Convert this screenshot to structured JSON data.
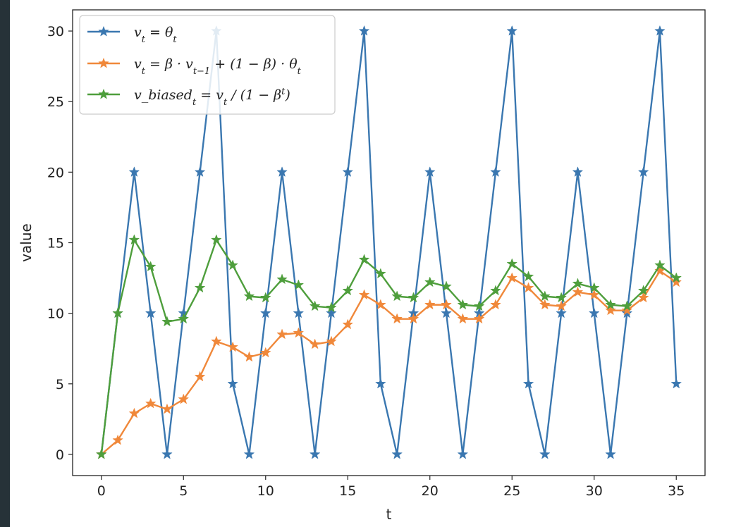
{
  "chart_data": {
    "type": "line",
    "xlabel": "t",
    "ylabel": "value",
    "xlim": [
      -1.75,
      36.75
    ],
    "ylim": [
      -1.5,
      31.5
    ],
    "xticks": [
      0,
      5,
      10,
      15,
      20,
      25,
      30,
      35
    ],
    "yticks": [
      0,
      5,
      10,
      15,
      20,
      25,
      30
    ],
    "marker": "star",
    "legend_position": "top-left",
    "grid": false,
    "x": [
      0,
      1,
      2,
      3,
      4,
      5,
      6,
      7,
      8,
      9,
      10,
      11,
      12,
      13,
      14,
      15,
      16,
      17,
      18,
      19,
      20,
      21,
      22,
      23,
      24,
      25,
      26,
      27,
      28,
      29,
      30,
      31,
      32,
      33,
      34,
      35
    ],
    "series": [
      {
        "name": "v_t = θ_t",
        "legend": [
          "v",
          "t",
          " = θ",
          "t",
          ""
        ],
        "color": "#3a77b0",
        "values": [
          0,
          10,
          20,
          10,
          0,
          10,
          20,
          30,
          5,
          0,
          10,
          20,
          10,
          0,
          10,
          20,
          30,
          5,
          0,
          10,
          20,
          10,
          0,
          10,
          20,
          30,
          5,
          0,
          10,
          20,
          10,
          0,
          10,
          20,
          30,
          5
        ]
      },
      {
        "name": "v_t = β · v_{t−1} + (1 − β) · θ_t",
        "legend": [
          "v",
          "t",
          " = β · v",
          "t−1",
          " + (1 − β) · θ",
          "t",
          ""
        ],
        "color": "#f0883a",
        "values": [
          0,
          1.0,
          2.9,
          3.6,
          3.2,
          3.9,
          5.5,
          8.0,
          7.6,
          6.9,
          7.2,
          8.5,
          8.6,
          7.8,
          8.0,
          9.2,
          11.3,
          10.6,
          9.6,
          9.6,
          10.6,
          10.6,
          9.6,
          9.6,
          10.6,
          12.5,
          11.8,
          10.6,
          10.5,
          11.5,
          11.3,
          10.2,
          10.2,
          11.1,
          13.0,
          12.2
        ]
      },
      {
        "name": "v_biased_t = v_t / (1 − β^t)",
        "legend": [
          "v_biased",
          "t",
          " = v",
          "t",
          " / (1 − β",
          "t",
          ")"
        ],
        "color": "#4e9e3c",
        "values": [
          0,
          10.0,
          15.2,
          13.3,
          9.4,
          9.6,
          11.8,
          15.2,
          13.4,
          11.2,
          11.1,
          12.4,
          12.0,
          10.5,
          10.4,
          11.6,
          13.8,
          12.8,
          11.2,
          11.1,
          12.2,
          11.9,
          10.6,
          10.5,
          11.6,
          13.5,
          12.6,
          11.2,
          11.1,
          12.1,
          11.8,
          10.6,
          10.5,
          11.6,
          13.4,
          12.5
        ]
      }
    ]
  }
}
